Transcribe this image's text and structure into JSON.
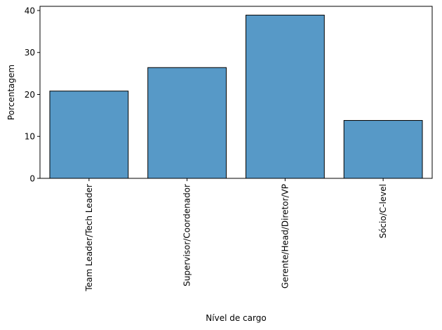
{
  "chart_data": {
    "type": "bar",
    "categories": [
      "Team Leader/Tech Leader",
      "Supervisor/Coordenador",
      "Gerente/Head/Diretor/VP",
      "Sócio/C-level"
    ],
    "values": [
      20.8,
      26.4,
      38.9,
      13.8
    ],
    "xlabel": "Nível de cargo",
    "ylabel": "Porcentagem",
    "ylim": [
      0,
      41
    ],
    "yticks": [
      0,
      10,
      20,
      30,
      40
    ],
    "grid": false,
    "bar_color": "#5799c7",
    "edge_color": "#000000"
  }
}
